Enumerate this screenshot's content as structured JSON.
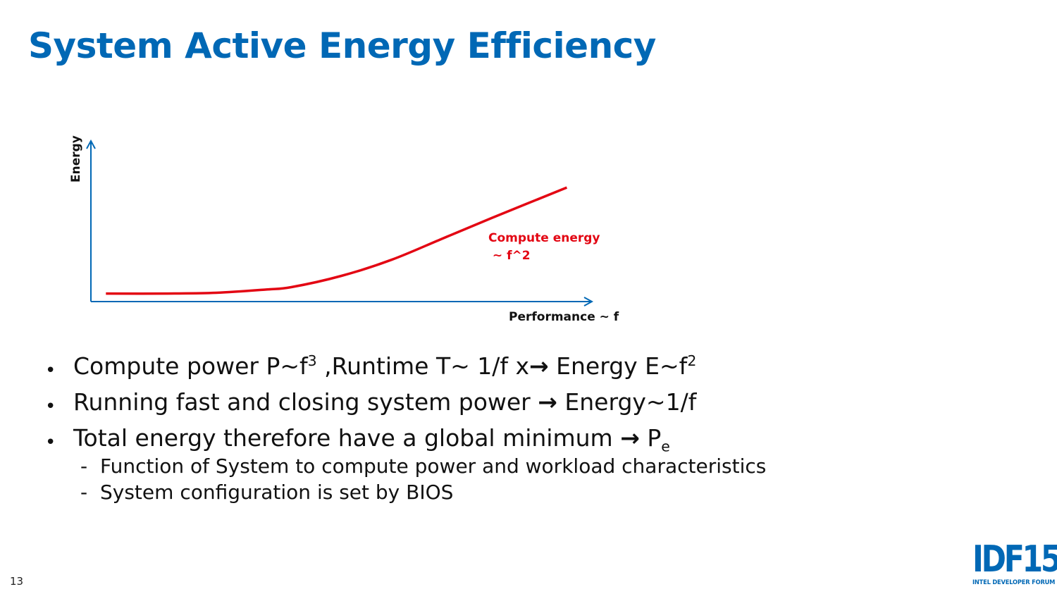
{
  "slide": {
    "title": "System Active Energy Efficiency",
    "page_number": "13"
  },
  "chart_data": {
    "type": "line",
    "title": "",
    "xlabel": "Performance ~ f",
    "ylabel": "Energy",
    "xlim": [
      0,
      10
    ],
    "ylim": [
      0,
      10
    ],
    "series": [
      {
        "name": "Compute energy ~ f^2",
        "color": "#e30613",
        "x": [
          0.3,
          1.5,
          2.5,
          3.5,
          4.0,
          5.0,
          6.0,
          7.0,
          8.0,
          9.5
        ],
        "y": [
          0.5,
          0.5,
          0.55,
          0.75,
          0.9,
          1.6,
          2.6,
          3.9,
          5.2,
          7.1
        ]
      }
    ],
    "annotations": [
      {
        "text_line1": "Compute energy",
        "text_line2": " ~ f^2",
        "color": "#e30613"
      }
    ],
    "axis_color": "#0068b5",
    "grid": false
  },
  "bullets": [
    {
      "pre": "Compute power P~f",
      "sup1": "3",
      "mid": " ,Runtime T~ 1/f x",
      "arrow": "→",
      "post": " Energy E~f",
      "sup2": "2"
    },
    {
      "pre": "Running fast and closing system power ",
      "arrow": "→",
      "post": " Energy~1/f"
    },
    {
      "pre": "Total energy therefore have a global minimum ",
      "arrow": "→",
      "post": " P",
      "sub": "e",
      "subitems": [
        "Function of System to compute power and workload characteristics",
        "System configuration is set by BIOS"
      ]
    }
  ],
  "logo": {
    "mark": "IDF15",
    "subtitle": "INTEL DEVELOPER FORUM",
    "color": "#0068b5"
  }
}
